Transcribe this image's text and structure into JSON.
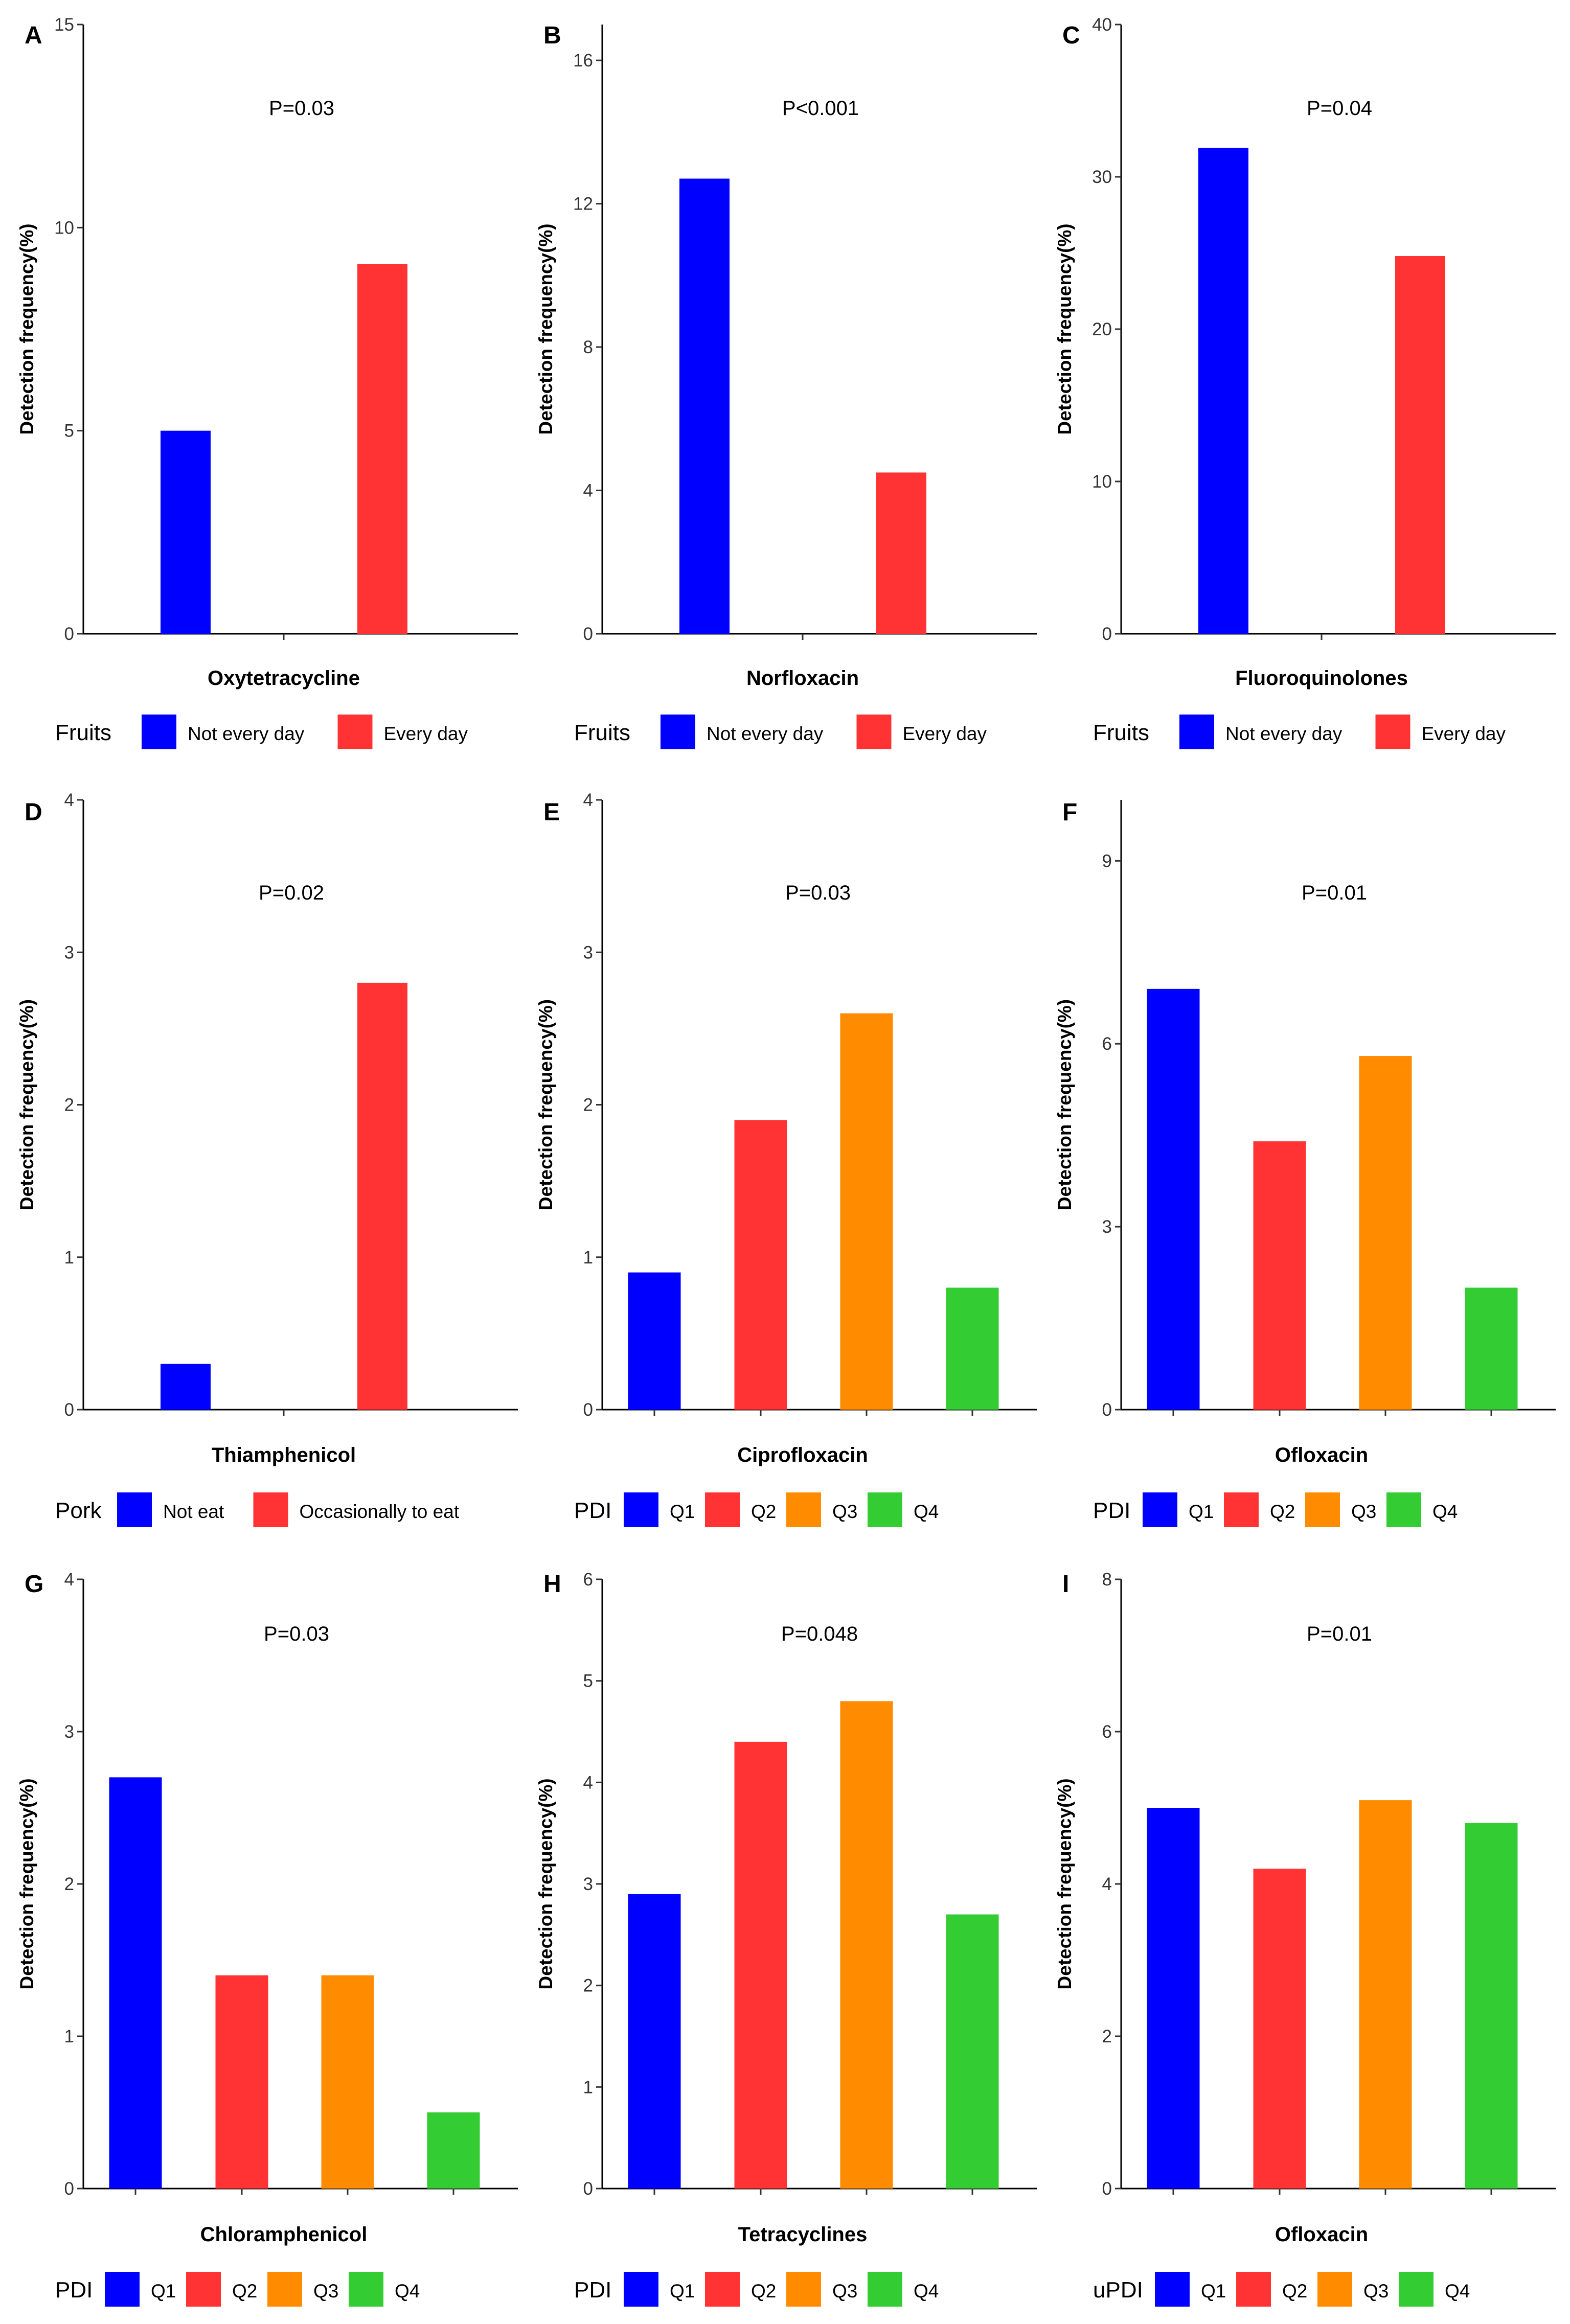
{
  "figure": {
    "colors": {
      "blue": "#0000FF",
      "red": "#FF3333",
      "orange": "#FF8C00",
      "green": "#33CC33"
    }
  },
  "chart_data": [
    {
      "panel": "A",
      "type": "bar",
      "title": "",
      "xlabel": "Oxytetracycline",
      "ylabel": "Detection frequency(%)",
      "ylim": [
        0,
        15
      ],
      "yticks": [
        0,
        5,
        10,
        15
      ],
      "pvalue_label": "P=0.03",
      "legend": {
        "title": "Fruits",
        "position": "bottom"
      },
      "categories": [
        "Not every day",
        "Every day"
      ],
      "values": [
        5.0,
        9.1
      ],
      "colors": [
        "#0000FF",
        "#FF3333"
      ]
    },
    {
      "panel": "B",
      "type": "bar",
      "title": "",
      "xlabel": "Norfloxacin",
      "ylabel": "Detection frequency(%)",
      "ylim": [
        0,
        17
      ],
      "yticks": [
        0,
        4,
        8,
        12,
        16
      ],
      "pvalue_label": "P<0.001",
      "legend": {
        "title": "Fruits",
        "position": "bottom"
      },
      "categories": [
        "Not every day",
        "Every day"
      ],
      "values": [
        12.7,
        4.5
      ],
      "colors": [
        "#0000FF",
        "#FF3333"
      ]
    },
    {
      "panel": "C",
      "type": "bar",
      "title": "",
      "xlabel": "Fluoroquinolones",
      "ylabel": "Detection frequency(%)",
      "ylim": [
        0,
        40
      ],
      "yticks": [
        0,
        10,
        20,
        30,
        40
      ],
      "pvalue_label": "P=0.04",
      "legend": {
        "title": "Fruits",
        "position": "bottom"
      },
      "categories": [
        "Not every day",
        "Every day"
      ],
      "values": [
        31.9,
        24.8
      ],
      "colors": [
        "#0000FF",
        "#FF3333"
      ]
    },
    {
      "panel": "D",
      "type": "bar",
      "title": "",
      "xlabel": "Thiamphenicol",
      "ylabel": "Detection frequency(%)",
      "ylim": [
        0,
        4
      ],
      "yticks": [
        0,
        1,
        2,
        3,
        4
      ],
      "pvalue_label": "P=0.02",
      "legend": {
        "title": "Pork",
        "position": "bottom"
      },
      "categories": [
        "Not eat",
        "Occasionally to eat"
      ],
      "values": [
        0.3,
        2.8
      ],
      "colors": [
        "#0000FF",
        "#FF3333"
      ]
    },
    {
      "panel": "E",
      "type": "bar",
      "title": "",
      "xlabel": "Ciprofloxacin",
      "ylabel": "Detection frequency(%)",
      "ylim": [
        0,
        4
      ],
      "yticks": [
        0,
        1,
        2,
        3,
        4
      ],
      "pvalue_label": "P=0.03",
      "legend": {
        "title": "PDI",
        "position": "bottom"
      },
      "categories": [
        "Q1",
        "Q2",
        "Q3",
        "Q4"
      ],
      "values": [
        0.9,
        1.9,
        2.6,
        0.8
      ],
      "colors": [
        "#0000FF",
        "#FF3333",
        "#FF8C00",
        "#33CC33"
      ]
    },
    {
      "panel": "F",
      "type": "bar",
      "title": "",
      "xlabel": "Ofloxacin",
      "ylabel": "Detection frequency(%)",
      "ylim": [
        0,
        10
      ],
      "yticks": [
        0,
        3,
        6,
        9
      ],
      "pvalue_label": "P=0.01",
      "legend": {
        "title": "PDI",
        "position": "bottom"
      },
      "categories": [
        "Q1",
        "Q2",
        "Q3",
        "Q4"
      ],
      "values": [
        6.9,
        4.4,
        5.8,
        2.0
      ],
      "colors": [
        "#0000FF",
        "#FF3333",
        "#FF8C00",
        "#33CC33"
      ]
    },
    {
      "panel": "G",
      "type": "bar",
      "title": "",
      "xlabel": "Chloramphenicol",
      "ylabel": "Detection frequency(%)",
      "ylim": [
        0,
        4
      ],
      "yticks": [
        0,
        1,
        2,
        3,
        4
      ],
      "pvalue_label": "P=0.03",
      "legend": {
        "title": "PDI",
        "position": "bottom"
      },
      "categories": [
        "Q1",
        "Q2",
        "Q3",
        "Q4"
      ],
      "values": [
        2.7,
        1.4,
        1.4,
        0.5
      ],
      "colors": [
        "#0000FF",
        "#FF3333",
        "#FF8C00",
        "#33CC33"
      ]
    },
    {
      "panel": "H",
      "type": "bar",
      "title": "",
      "xlabel": "Tetracyclines",
      "ylabel": "Detection frequency(%)",
      "ylim": [
        0,
        6
      ],
      "yticks": [
        0,
        1,
        2,
        3,
        4,
        5,
        6
      ],
      "pvalue_label": "P=0.048",
      "legend": {
        "title": "PDI",
        "position": "bottom"
      },
      "categories": [
        "Q1",
        "Q2",
        "Q3",
        "Q4"
      ],
      "values": [
        2.9,
        4.4,
        4.8,
        2.7
      ],
      "colors": [
        "#0000FF",
        "#FF3333",
        "#FF8C00",
        "#33CC33"
      ]
    },
    {
      "panel": "I",
      "type": "bar",
      "title": "",
      "xlabel": "Ofloxacin",
      "ylabel": "Detection frequency(%)",
      "ylim": [
        0,
        8
      ],
      "yticks": [
        0,
        2,
        4,
        6,
        8
      ],
      "pvalue_label": "P=0.01",
      "legend": {
        "title": "uPDI",
        "position": "bottom"
      },
      "categories": [
        "Q1",
        "Q2",
        "Q3",
        "Q4"
      ],
      "values": [
        5.0,
        4.2,
        5.1,
        4.8
      ],
      "colors": [
        "#0000FF",
        "#FF3333",
        "#FF8C00",
        "#33CC33"
      ]
    }
  ]
}
